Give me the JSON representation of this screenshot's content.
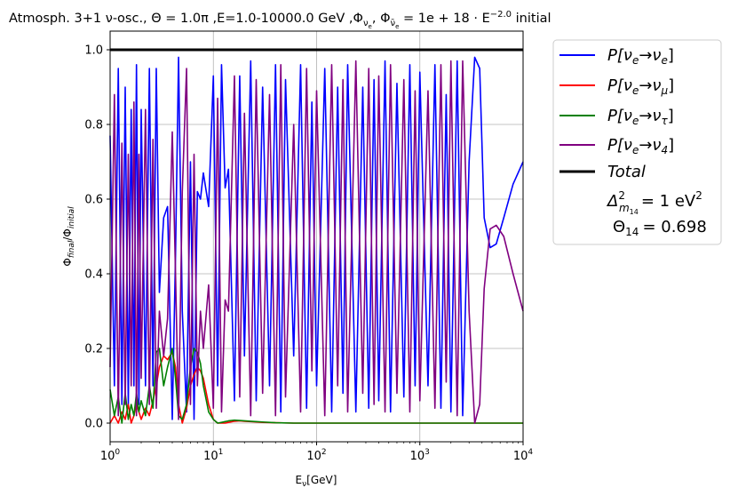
{
  "chart_data": {
    "type": "line",
    "title": "Atmosph. 3+1 ν-osc., Θ = 1.0π ,E=1.0-10000.0 GeV  ,Φ_νe, Φ_ν̄e = 1e+18·E^−2.0 initial",
    "title_parts": {
      "main": "Atmosph. 3+1 ν-osc., Θ = 1.0π ,E=1.0-10000.0 GeV  ,Φ",
      "sub1": "ν",
      "sub1b": "e",
      "mid": ", Φ",
      "sub2": "ν̄",
      "sub2b": "e",
      "eq": " = 1e + 18 · E",
      "sup": "−2.0",
      "tail": " initial"
    },
    "xlabel": "E_ν[GeV]",
    "xlabel_parts": {
      "main": "E",
      "sub": "ν",
      "unit": "[GeV]"
    },
    "ylabel": "Φ_final/Φ_initial",
    "ylabel_parts": {
      "a": "Φ",
      "asub": "final",
      "b": "/Φ",
      "bsub": "initial"
    },
    "xscale": "log",
    "xlim": [
      1,
      10000
    ],
    "ylim": [
      -0.05,
      1.05
    ],
    "xticks": [
      1,
      10,
      100,
      1000,
      10000
    ],
    "xtick_labels": [
      {
        "base": "10",
        "exp": "0"
      },
      {
        "base": "10",
        "exp": "1"
      },
      {
        "base": "10",
        "exp": "2"
      },
      {
        "base": "10",
        "exp": "3"
      },
      {
        "base": "10",
        "exp": "4"
      }
    ],
    "yticks": [
      0.0,
      0.2,
      0.4,
      0.6,
      0.8,
      1.0
    ],
    "ytick_labels": [
      "0.0",
      "0.2",
      "0.4",
      "0.6",
      "0.8",
      "1.0"
    ],
    "grid": true,
    "legend_placement": "outside-top-right",
    "series": [
      {
        "name": "P[νe→νe]",
        "color": "#0000ff",
        "x": [
          1,
          1.1,
          1.2,
          1.3,
          1.4,
          1.5,
          1.6,
          1.7,
          1.8,
          1.9,
          2.0,
          2.2,
          2.4,
          2.6,
          2.8,
          3.0,
          3.3,
          3.6,
          4.0,
          4.3,
          4.6,
          5.0,
          5.5,
          6.0,
          6.5,
          7.0,
          7.5,
          8.0,
          9.0,
          10,
          11,
          12,
          13,
          14,
          16,
          18,
          20,
          23,
          26,
          30,
          35,
          40,
          45,
          50,
          60,
          70,
          80,
          90,
          100,
          120,
          140,
          160,
          180,
          200,
          240,
          280,
          320,
          360,
          400,
          460,
          520,
          600,
          700,
          800,
          900,
          1000,
          1200,
          1400,
          1600,
          1800,
          2000,
          2300,
          2600,
          3000,
          3400,
          3800,
          4200,
          4800,
          5500,
          6500,
          8000,
          10000
        ],
        "values": [
          0.77,
          0.1,
          0.95,
          0.05,
          0.9,
          0.05,
          0.84,
          0.1,
          0.96,
          0.05,
          0.84,
          0.1,
          0.95,
          0.1,
          0.95,
          0.35,
          0.55,
          0.58,
          0.01,
          0.45,
          0.98,
          0.3,
          0.03,
          0.7,
          0.01,
          0.62,
          0.6,
          0.67,
          0.58,
          0.93,
          0.1,
          0.96,
          0.63,
          0.68,
          0.06,
          0.93,
          0.18,
          0.97,
          0.06,
          0.9,
          0.1,
          0.96,
          0.03,
          0.92,
          0.18,
          0.96,
          0.04,
          0.86,
          0.1,
          0.95,
          0.03,
          0.9,
          0.08,
          0.96,
          0.03,
          0.9,
          0.04,
          0.92,
          0.06,
          0.97,
          0.03,
          0.91,
          0.07,
          0.96,
          0.1,
          0.94,
          0.1,
          0.96,
          0.04,
          0.88,
          0.03,
          0.97,
          0.02,
          0.7,
          0.98,
          0.95,
          0.55,
          0.47,
          0.48,
          0.55,
          0.64,
          0.7
        ]
      },
      {
        "name": "P[νe→νμ]",
        "color": "#ff0000",
        "x": [
          1,
          1.1,
          1.2,
          1.3,
          1.4,
          1.5,
          1.6,
          1.7,
          1.8,
          1.9,
          2.0,
          2.2,
          2.4,
          2.6,
          2.8,
          3.0,
          3.3,
          3.6,
          4.0,
          4.3,
          4.6,
          5.0,
          5.5,
          6.0,
          6.5,
          7.0,
          7.5,
          8.0,
          9.0,
          10,
          11,
          12,
          13,
          14,
          16,
          18,
          20,
          23,
          26,
          30,
          40,
          60,
          100,
          200,
          500,
          1000,
          10000
        ],
        "values": [
          0.0,
          0.02,
          0.0,
          0.03,
          0.01,
          0.05,
          0.0,
          0.02,
          0.05,
          0.03,
          0.01,
          0.04,
          0.02,
          0.06,
          0.1,
          0.15,
          0.18,
          0.17,
          0.19,
          0.15,
          0.05,
          0.0,
          0.04,
          0.1,
          0.13,
          0.15,
          0.14,
          0.12,
          0.05,
          0.01,
          0.0,
          0.0,
          0.0,
          0.002,
          0.005,
          0.006,
          0.005,
          0.004,
          0.003,
          0.002,
          0.001,
          0.0,
          0.0,
          0.0,
          0.0,
          0.0,
          0.0
        ]
      },
      {
        "name": "P[νe→ντ]",
        "color": "#008000",
        "x": [
          1,
          1.1,
          1.2,
          1.3,
          1.4,
          1.5,
          1.6,
          1.7,
          1.8,
          1.9,
          2.0,
          2.2,
          2.4,
          2.6,
          2.8,
          3.0,
          3.3,
          3.6,
          4.0,
          4.3,
          4.6,
          5.0,
          5.5,
          6.0,
          6.5,
          7.0,
          7.5,
          8.0,
          9.0,
          10,
          11,
          12,
          13,
          14,
          16,
          18,
          20,
          23,
          26,
          30,
          40,
          60,
          100,
          200,
          500,
          1000,
          10000
        ],
        "values": [
          0.09,
          0.02,
          0.07,
          0.0,
          0.08,
          0.01,
          0.05,
          0.02,
          0.08,
          0.03,
          0.06,
          0.02,
          0.1,
          0.04,
          0.19,
          0.2,
          0.1,
          0.15,
          0.2,
          0.12,
          0.02,
          0.01,
          0.05,
          0.15,
          0.2,
          0.19,
          0.16,
          0.1,
          0.03,
          0.01,
          0.0,
          0.002,
          0.004,
          0.006,
          0.008,
          0.007,
          0.006,
          0.005,
          0.004,
          0.003,
          0.001,
          0.0,
          0.0,
          0.0,
          0.0,
          0.0,
          0.0
        ]
      },
      {
        "name": "P[νe→ν4]",
        "color": "#800080",
        "x": [
          1,
          1.1,
          1.2,
          1.3,
          1.4,
          1.5,
          1.6,
          1.7,
          1.8,
          1.9,
          2.0,
          2.2,
          2.4,
          2.6,
          2.8,
          3.0,
          3.3,
          3.6,
          4.0,
          4.3,
          4.6,
          5.0,
          5.5,
          6.0,
          6.5,
          7.0,
          7.5,
          8.0,
          9.0,
          10,
          11,
          12,
          13,
          14,
          16,
          18,
          20,
          23,
          26,
          30,
          35,
          40,
          45,
          50,
          60,
          70,
          80,
          90,
          100,
          120,
          140,
          160,
          180,
          200,
          240,
          280,
          320,
          360,
          400,
          460,
          520,
          600,
          700,
          800,
          900,
          1000,
          1200,
          1400,
          1600,
          1800,
          2000,
          2300,
          2600,
          3000,
          3400,
          3800,
          4200,
          4800,
          5500,
          6500,
          8000,
          10000
        ],
        "values": [
          0.15,
          0.88,
          0.02,
          0.75,
          0.05,
          0.72,
          0.1,
          0.86,
          0.02,
          0.72,
          0.12,
          0.84,
          0.05,
          0.76,
          0.04,
          0.3,
          0.18,
          0.28,
          0.78,
          0.4,
          0.01,
          0.62,
          0.95,
          0.05,
          0.72,
          0.1,
          0.3,
          0.2,
          0.37,
          0.04,
          0.87,
          0.03,
          0.33,
          0.3,
          0.93,
          0.07,
          0.83,
          0.02,
          0.92,
          0.08,
          0.88,
          0.02,
          0.96,
          0.07,
          0.8,
          0.03,
          0.95,
          0.14,
          0.89,
          0.02,
          0.96,
          0.1,
          0.92,
          0.03,
          0.97,
          0.08,
          0.95,
          0.05,
          0.93,
          0.03,
          0.96,
          0.08,
          0.92,
          0.03,
          0.89,
          0.06,
          0.89,
          0.04,
          0.96,
          0.11,
          0.97,
          0.02,
          0.97,
          0.3,
          0.0,
          0.05,
          0.36,
          0.52,
          0.53,
          0.5,
          0.4,
          0.3
        ]
      },
      {
        "name": "Total",
        "color": "#000000",
        "x": [
          1,
          10000
        ],
        "values": [
          1.0,
          1.0
        ]
      }
    ],
    "legend": {
      "entries": [
        {
          "label": "P[νe→νe]",
          "parts": {
            "p": "P[ν",
            "s1": "e",
            "arrow": "→ν",
            "s2": "e",
            "end": "]"
          },
          "color": "#0000ff"
        },
        {
          "label": "P[νe→νμ]",
          "parts": {
            "p": "P[ν",
            "s1": "e",
            "arrow": "→ν",
            "s2": "μ",
            "end": "]"
          },
          "color": "#ff0000"
        },
        {
          "label": "P[νe→ντ]",
          "parts": {
            "p": "P[ν",
            "s1": "e",
            "arrow": "→ν",
            "s2": "τ",
            "end": "]"
          },
          "color": "#008000"
        },
        {
          "label": "P[νe→ν4]",
          "parts": {
            "p": "P[ν",
            "s1": "e",
            "arrow": "→ν",
            "s2": "4",
            "end": "]"
          },
          "color": "#800080"
        },
        {
          "label": "Total",
          "color": "#000000"
        }
      ],
      "note_line1": {
        "delta": "Δ",
        "sup": "2",
        "sub": "m",
        "subsub": "14",
        "eq": "= 1 eV",
        "unitsup": "2"
      },
      "note_line2": {
        "theta": "Θ",
        "sub": "14",
        "eq": "= 0.698"
      }
    }
  }
}
